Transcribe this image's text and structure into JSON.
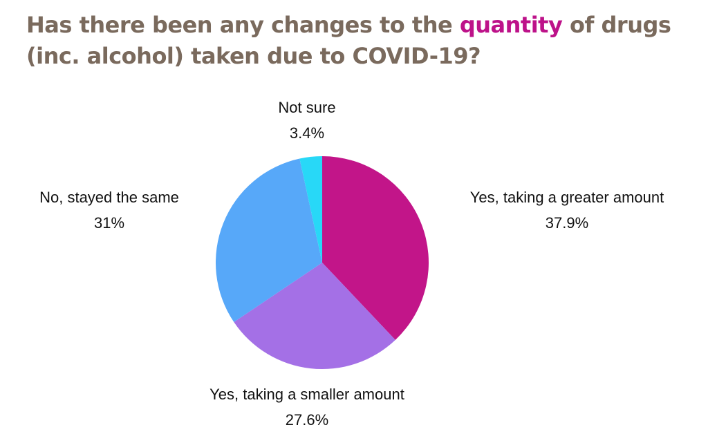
{
  "title": {
    "before": "Has there been any changes to the ",
    "highlight": "quantity",
    "after": " of drugs (inc. alcohol) taken due to COVID-19?"
  },
  "colors": {
    "title": "#7a6a5d",
    "highlight": "#bd1289"
  },
  "chart_data": {
    "type": "pie",
    "categories": [
      "Yes, taking a greater amount",
      "Yes, taking a smaller amount",
      "No, stayed the same",
      "Not sure"
    ],
    "values": [
      37.9,
      27.6,
      31,
      3.4
    ],
    "value_labels": [
      "37.9%",
      "27.6%",
      "31%",
      "3.4%"
    ],
    "colors": [
      "#c21589",
      "#a470e6",
      "#57a8f9",
      "#28d8f7"
    ],
    "start_angle": "12 o'clock",
    "direction": "clockwise",
    "legend": "none",
    "labels_position": "outside"
  }
}
